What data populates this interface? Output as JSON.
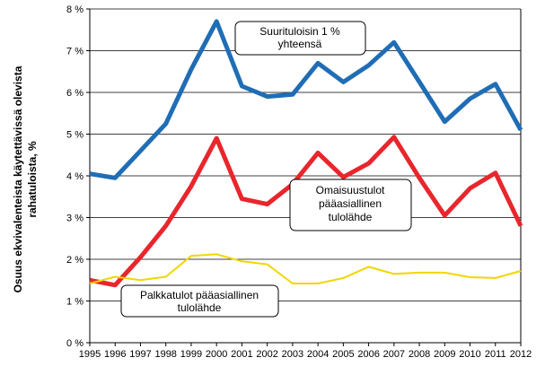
{
  "chart_data": {
    "type": "line",
    "title": "",
    "xlabel": "",
    "ylabel_lines": [
      "Osuus ekvivalenteista käytettävissä olevista",
      "rahatuloista, %"
    ],
    "x": [
      "1995",
      "1996",
      "1997",
      "1998",
      "1999",
      "2000",
      "2001",
      "2002",
      "2003",
      "2004",
      "2005",
      "2006",
      "2007",
      "2008",
      "2009",
      "2010",
      "2011",
      "2012"
    ],
    "y_ticks": [
      "0 %",
      "1 %",
      "2 %",
      "3 %",
      "4 %",
      "5 %",
      "6 %",
      "7 %",
      "8 %"
    ],
    "ylim": [
      0,
      8
    ],
    "grid": "horizontal",
    "series": [
      {
        "name": "Suurituloisin 1 % yhteensä",
        "color": "#1f6db5",
        "values": [
          4.05,
          3.95,
          4.6,
          5.25,
          6.55,
          7.7,
          6.15,
          5.9,
          5.95,
          6.7,
          6.25,
          6.65,
          7.2,
          6.25,
          5.3,
          5.85,
          6.2,
          5.1
        ]
      },
      {
        "name": "Omaisuustulot pääasiallinen tulolähde",
        "color": "#e8262c",
        "values": [
          1.5,
          1.38,
          2.05,
          2.8,
          3.75,
          4.9,
          3.45,
          3.32,
          3.8,
          4.55,
          3.97,
          4.3,
          4.93,
          3.95,
          3.05,
          3.7,
          4.07,
          2.8
        ]
      },
      {
        "name": "Palkkatulot pääasiallinen tulolähde",
        "color": "#f2d600",
        "values": [
          1.42,
          1.58,
          1.5,
          1.58,
          2.08,
          2.12,
          1.95,
          1.88,
          1.42,
          1.42,
          1.55,
          1.82,
          1.65,
          1.68,
          1.68,
          1.57,
          1.55,
          1.72
        ]
      }
    ],
    "annotations": [
      {
        "series": 0,
        "lines": [
          "Suurituloisin 1 %",
          "yhteensä"
        ]
      },
      {
        "series": 1,
        "lines": [
          "Omaisuustulot",
          "pääasiallinen",
          "tulolähde"
        ]
      },
      {
        "series": 2,
        "lines": [
          "Palkkatulot pääasiallinen",
          "tulolähde"
        ]
      }
    ]
  }
}
